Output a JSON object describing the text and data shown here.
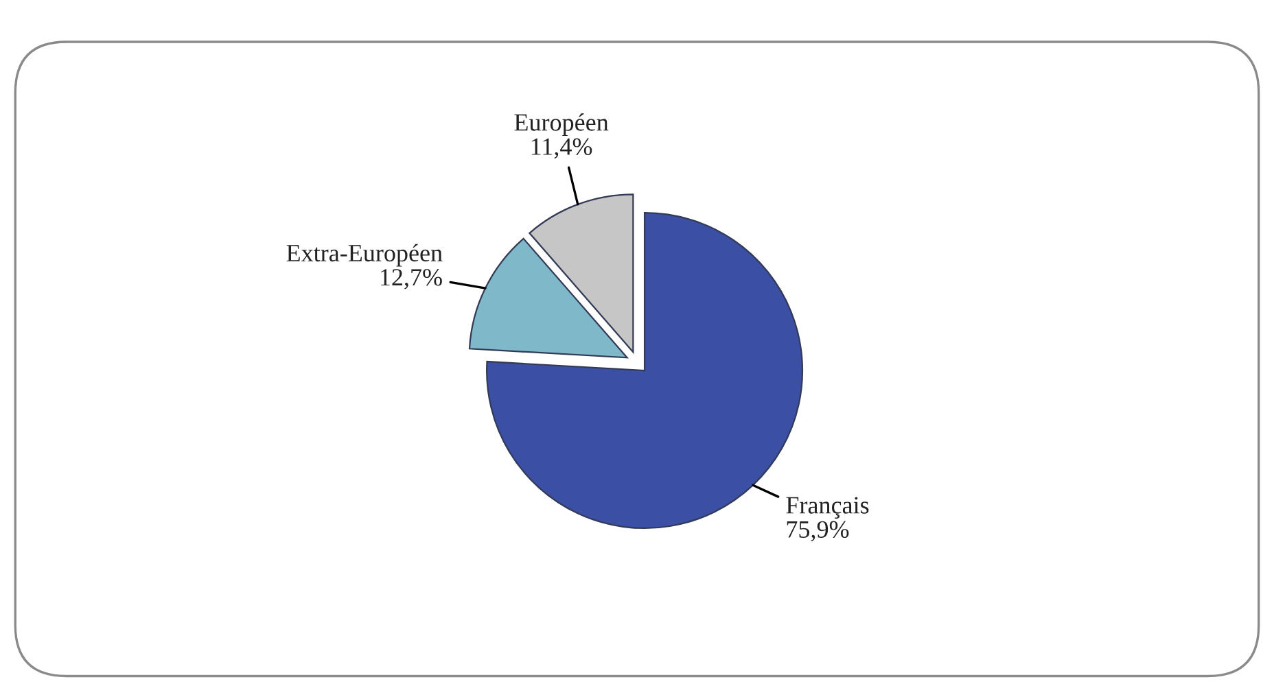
{
  "chart_data": {
    "type": "pie",
    "categories": [
      "Français",
      "Extra-Européen",
      "Européen"
    ],
    "values": [
      75.9,
      12.7,
      11.4
    ],
    "value_labels": [
      "75,9%",
      "12,7%",
      "11,4%"
    ],
    "colors": [
      "#3b4fa5",
      "#7fb9c9",
      "#c6c6c6"
    ]
  }
}
